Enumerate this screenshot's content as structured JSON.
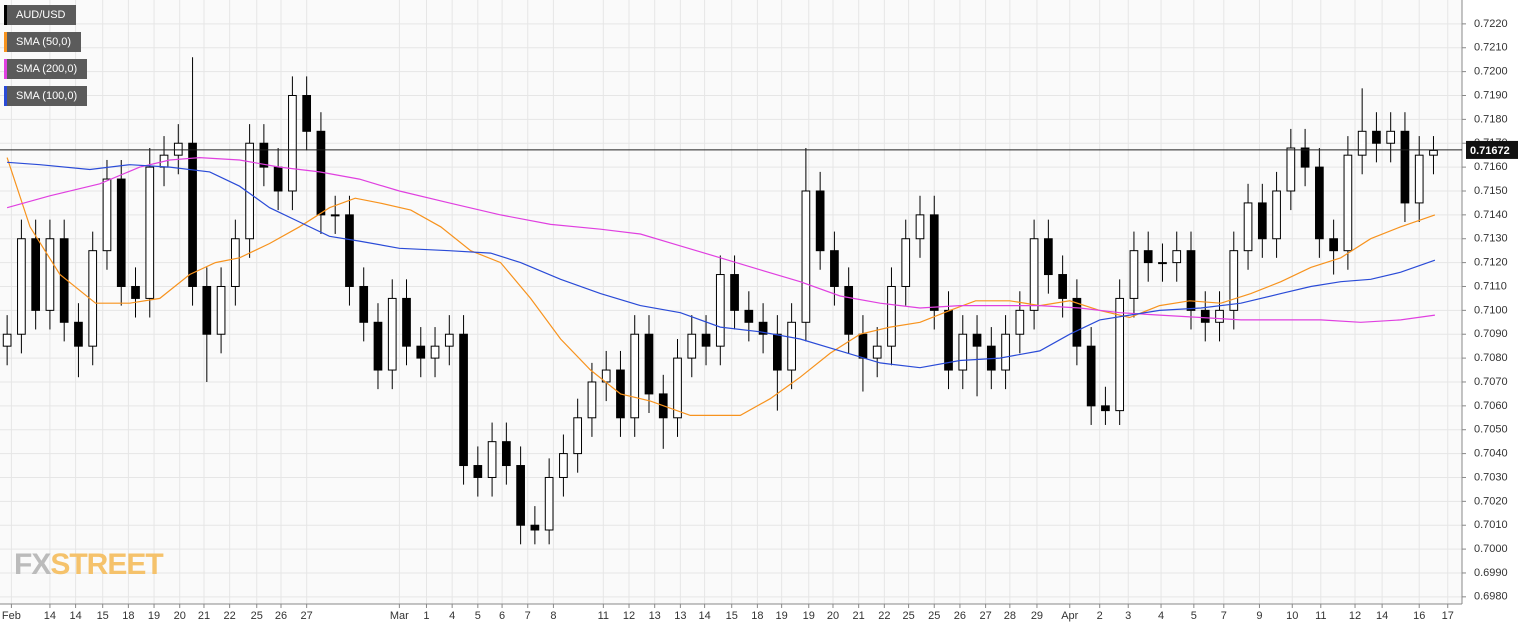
{
  "chart_data": {
    "type": "candlestick",
    "name": "AUD/USD",
    "color": "#000000",
    "open": [
      0.7085,
      0.709,
      0.713,
      0.71,
      0.713,
      0.7095,
      0.7085,
      0.7125,
      0.7155,
      0.711,
      0.7105,
      0.716,
      0.7165,
      0.717,
      0.711,
      0.709,
      0.711,
      0.713,
      0.717,
      0.716,
      0.715,
      0.719,
      0.7175,
      0.714,
      0.714,
      0.711,
      0.7095,
      0.7075,
      0.7105,
      0.7085,
      0.708,
      0.7085,
      0.709,
      0.7035,
      0.703,
      0.7045,
      0.7035,
      0.701,
      0.7008,
      0.703,
      0.704,
      0.7055,
      0.707,
      0.7075,
      0.7055,
      0.709,
      0.7065,
      0.7055,
      0.708,
      0.709,
      0.7085,
      0.7115,
      0.71,
      0.7095,
      0.709,
      0.7075,
      0.7095,
      0.715,
      0.7125,
      0.711,
      0.709,
      0.708,
      0.7085,
      0.711,
      0.713,
      0.714,
      0.71,
      0.7075,
      0.709,
      0.7085,
      0.7075,
      0.709,
      0.71,
      0.713,
      0.7115,
      0.7105,
      0.7085,
      0.706,
      0.7058,
      0.7105,
      0.7125,
      0.712,
      0.712,
      0.7125,
      0.71,
      0.7095,
      0.71,
      0.7125,
      0.7145,
      0.713,
      0.715,
      0.7168,
      0.716,
      0.713,
      0.7125,
      0.7165,
      0.7175,
      0.717,
      0.7175,
      0.7145,
      0.7165
    ],
    "high": [
      0.7098,
      0.7138,
      0.7138,
      0.7138,
      0.7138,
      0.7103,
      0.7133,
      0.7163,
      0.7163,
      0.7118,
      0.7168,
      0.7173,
      0.7178,
      0.7206,
      0.7118,
      0.7118,
      0.7138,
      0.7178,
      0.7178,
      0.7168,
      0.7198,
      0.7198,
      0.7183,
      0.7148,
      0.7148,
      0.7118,
      0.7103,
      0.7113,
      0.7113,
      0.7093,
      0.7093,
      0.7098,
      0.7098,
      0.7043,
      0.7053,
      0.7053,
      0.7043,
      0.7018,
      0.7038,
      0.7048,
      0.7063,
      0.7078,
      0.7083,
      0.7083,
      0.7098,
      0.7098,
      0.7073,
      0.7088,
      0.7098,
      0.7098,
      0.7123,
      0.7123,
      0.7108,
      0.7103,
      0.7098,
      0.7103,
      0.7168,
      0.7158,
      0.7133,
      0.7118,
      0.7098,
      0.7093,
      0.7118,
      0.7138,
      0.7148,
      0.7148,
      0.7108,
      0.7098,
      0.7098,
      0.7093,
      0.7098,
      0.7108,
      0.7138,
      0.7138,
      0.7123,
      0.7113,
      0.7093,
      0.7068,
      0.7113,
      0.7133,
      0.7133,
      0.7128,
      0.7133,
      0.7133,
      0.7108,
      0.7108,
      0.7133,
      0.7153,
      0.7153,
      0.7158,
      0.7176,
      0.7176,
      0.7168,
      0.7138,
      0.7173,
      0.7193,
      0.7183,
      0.7183,
      0.7183,
      0.7173,
      0.7173
    ],
    "low": [
      0.7077,
      0.7082,
      0.7092,
      0.7092,
      0.7087,
      0.7072,
      0.7077,
      0.7117,
      0.7102,
      0.7097,
      0.7097,
      0.7152,
      0.7157,
      0.7102,
      0.707,
      0.7082,
      0.7102,
      0.7122,
      0.7152,
      0.7142,
      0.7142,
      0.7167,
      0.7132,
      0.7132,
      0.7102,
      0.7087,
      0.7067,
      0.7067,
      0.7077,
      0.7072,
      0.7072,
      0.7077,
      0.7027,
      0.7022,
      0.7022,
      0.7027,
      0.7002,
      0.7002,
      0.7002,
      0.7022,
      0.7032,
      0.7047,
      0.7062,
      0.7047,
      0.7047,
      0.7057,
      0.7042,
      0.7047,
      0.7072,
      0.7077,
      0.7077,
      0.7092,
      0.7087,
      0.7082,
      0.7058,
      0.7067,
      0.7087,
      0.7117,
      0.7102,
      0.7082,
      0.7066,
      0.7072,
      0.7077,
      0.7102,
      0.7122,
      0.7092,
      0.7067,
      0.7067,
      0.7064,
      0.7067,
      0.7067,
      0.7082,
      0.7092,
      0.7107,
      0.7097,
      0.7077,
      0.7052,
      0.7052,
      0.7052,
      0.7097,
      0.7112,
      0.7112,
      0.7112,
      0.7092,
      0.7087,
      0.7087,
      0.7092,
      0.7117,
      0.7122,
      0.7122,
      0.7142,
      0.7152,
      0.7122,
      0.7115,
      0.7117,
      0.7157,
      0.7162,
      0.7162,
      0.7137,
      0.7137,
      0.7157
    ],
    "close": [
      0.709,
      0.713,
      0.71,
      0.713,
      0.7095,
      0.7085,
      0.7125,
      0.7155,
      0.711,
      0.7105,
      0.716,
      0.7165,
      0.717,
      0.711,
      0.709,
      0.711,
      0.713,
      0.717,
      0.716,
      0.715,
      0.719,
      0.7175,
      0.714,
      0.714,
      0.711,
      0.7095,
      0.7075,
      0.7105,
      0.7085,
      0.708,
      0.7085,
      0.709,
      0.7035,
      0.703,
      0.7045,
      0.7035,
      0.701,
      0.7008,
      0.703,
      0.704,
      0.7055,
      0.707,
      0.7075,
      0.7055,
      0.709,
      0.7065,
      0.7055,
      0.708,
      0.709,
      0.7085,
      0.7115,
      0.71,
      0.7095,
      0.709,
      0.7075,
      0.7095,
      0.715,
      0.7125,
      0.711,
      0.709,
      0.708,
      0.7085,
      0.711,
      0.713,
      0.714,
      0.71,
      0.7075,
      0.709,
      0.7085,
      0.7075,
      0.709,
      0.71,
      0.713,
      0.7115,
      0.7105,
      0.7085,
      0.706,
      0.7058,
      0.7105,
      0.7125,
      0.712,
      0.712,
      0.7125,
      0.71,
      0.7095,
      0.71,
      0.7125,
      0.7145,
      0.713,
      0.715,
      0.7168,
      0.716,
      0.713,
      0.7125,
      0.7165,
      0.7175,
      0.717,
      0.7175,
      0.7145,
      0.7165,
      0.7167
    ],
    "overlays": [
      {
        "name": "SMA (50,0)",
        "color": "#f7931e",
        "x": [
          0,
          1.6,
          3.7,
          6.2,
          8.6,
          10.7,
          12.8,
          14.6,
          16.3,
          18.4,
          20.5,
          22.6,
          24.4,
          26.1,
          28.3,
          30.4,
          32.5,
          34.6,
          36.7,
          38.8,
          40.9,
          43,
          45.1,
          47.9,
          51.4,
          53.5,
          55.6,
          57.7,
          59.8,
          61.9,
          64,
          66.1,
          67.9,
          70.3,
          72.4,
          74.5,
          76.6,
          78.7,
          80.8,
          82.9,
          85.1,
          87.2,
          89.3,
          91.4,
          93.5,
          95.6,
          97.7,
          100.1
        ],
        "values": [
          0.7164,
          0.7135,
          0.7115,
          0.7103,
          0.7103,
          0.7105,
          0.7115,
          0.712,
          0.7122,
          0.7128,
          0.7135,
          0.7143,
          0.7147,
          0.7145,
          0.7142,
          0.7135,
          0.7125,
          0.712,
          0.7105,
          0.7088,
          0.7075,
          0.7065,
          0.7062,
          0.7056,
          0.7056,
          0.7063,
          0.7072,
          0.7082,
          0.709,
          0.7093,
          0.7095,
          0.71,
          0.7104,
          0.7104,
          0.7102,
          0.7104,
          0.71,
          0.7097,
          0.7102,
          0.7104,
          0.7103,
          0.7107,
          0.7112,
          0.7118,
          0.7122,
          0.713,
          0.7135,
          0.714
        ]
      },
      {
        "name": "SMA (200,0)",
        "color": "#e040e0",
        "x": [
          0,
          3,
          6.5,
          9.3,
          11.4,
          13.5,
          16.3,
          19.1,
          21.9,
          24.7,
          27.5,
          31,
          34.6,
          38.1,
          41.6,
          44.4,
          47.2,
          50,
          52.8,
          55.6,
          58.4,
          61.2,
          64,
          66.8,
          69.6,
          72.4,
          75.2,
          78,
          80.8,
          83.7,
          86.5,
          89.3,
          92.1,
          94.9,
          97.7,
          100.1
        ],
        "values": [
          0.7143,
          0.7148,
          0.7153,
          0.716,
          0.7163,
          0.7164,
          0.7163,
          0.716,
          0.7158,
          0.7155,
          0.715,
          0.7145,
          0.714,
          0.7136,
          0.7134,
          0.7132,
          0.7127,
          0.7122,
          0.7117,
          0.7112,
          0.7106,
          0.7103,
          0.7101,
          0.7102,
          0.7102,
          0.7102,
          0.7101,
          0.7099,
          0.7098,
          0.7097,
          0.7096,
          0.7096,
          0.7096,
          0.7095,
          0.7096,
          0.7098
        ]
      },
      {
        "name": "SMA (100,0)",
        "color": "#2a4bd7",
        "x": [
          0,
          2.3,
          5.8,
          8.6,
          11.4,
          14.2,
          16.3,
          18.4,
          20.5,
          22.6,
          24.7,
          27.5,
          31,
          33.9,
          36,
          38.8,
          41.6,
          44.4,
          47.2,
          50,
          52.8,
          55.6,
          58.4,
          61.2,
          64,
          66.8,
          69.6,
          72.4,
          74.5,
          76.6,
          78.7,
          80.8,
          83.7,
          86.5,
          89.3,
          91.4,
          93.5,
          95.6,
          97.7,
          100.1
        ],
        "values": [
          0.7162,
          0.7161,
          0.7159,
          0.7161,
          0.716,
          0.7158,
          0.7152,
          0.7143,
          0.7137,
          0.7131,
          0.7129,
          0.7126,
          0.7125,
          0.7124,
          0.712,
          0.7113,
          0.7107,
          0.7102,
          0.7099,
          0.7093,
          0.7091,
          0.7088,
          0.7083,
          0.7078,
          0.7076,
          0.7079,
          0.708,
          0.7083,
          0.709,
          0.7096,
          0.7098,
          0.71,
          0.7101,
          0.7103,
          0.7107,
          0.711,
          0.7112,
          0.7113,
          0.7116,
          0.7121
        ]
      }
    ],
    "xlim": [
      -0.5,
      102
    ],
    "ylim": [
      0.6977,
      0.723
    ],
    "xticks": [
      {
        "value": 0.3,
        "label": "Feb"
      },
      {
        "value": 3,
        "label": "14"
      },
      {
        "value": 4.8,
        "label": "14"
      },
      {
        "value": 6.7,
        "label": "15"
      },
      {
        "value": 8.5,
        "label": "18"
      },
      {
        "value": 10.3,
        "label": "19"
      },
      {
        "value": 12.1,
        "label": "20"
      },
      {
        "value": 13.8,
        "label": "21"
      },
      {
        "value": 15.6,
        "label": "22"
      },
      {
        "value": 17.5,
        "label": "25"
      },
      {
        "value": 19.2,
        "label": "26"
      },
      {
        "value": 21,
        "label": "27"
      },
      {
        "value": 27.5,
        "label": "Mar"
      },
      {
        "value": 29.4,
        "label": "1"
      },
      {
        "value": 31.2,
        "label": "4"
      },
      {
        "value": 33,
        "label": "5"
      },
      {
        "value": 34.7,
        "label": "6"
      },
      {
        "value": 36.5,
        "label": "7"
      },
      {
        "value": 38.3,
        "label": "8"
      },
      {
        "value": 41.8,
        "label": "11"
      },
      {
        "value": 43.6,
        "label": "12"
      },
      {
        "value": 45.4,
        "label": "13"
      },
      {
        "value": 47.2,
        "label": "13"
      },
      {
        "value": 48.9,
        "label": "14"
      },
      {
        "value": 50.8,
        "label": "15"
      },
      {
        "value": 52.6,
        "label": "18"
      },
      {
        "value": 54.3,
        "label": "19"
      },
      {
        "value": 56.2,
        "label": "19"
      },
      {
        "value": 57.9,
        "label": "20"
      },
      {
        "value": 59.7,
        "label": "21"
      },
      {
        "value": 61.5,
        "label": "22"
      },
      {
        "value": 63.2,
        "label": "25"
      },
      {
        "value": 65,
        "label": "25"
      },
      {
        "value": 66.8,
        "label": "26"
      },
      {
        "value": 68.6,
        "label": "27"
      },
      {
        "value": 70.3,
        "label": "28"
      },
      {
        "value": 72.2,
        "label": "29"
      },
      {
        "value": 74.5,
        "label": "Apr"
      },
      {
        "value": 76.6,
        "label": "2"
      },
      {
        "value": 78.6,
        "label": "3"
      },
      {
        "value": 80.9,
        "label": "4"
      },
      {
        "value": 83.2,
        "label": "5"
      },
      {
        "value": 85.3,
        "label": "7"
      },
      {
        "value": 87.8,
        "label": "9"
      },
      {
        "value": 90.1,
        "label": "10"
      },
      {
        "value": 92.1,
        "label": "11"
      },
      {
        "value": 94.5,
        "label": "12"
      },
      {
        "value": 96.4,
        "label": "14"
      },
      {
        "value": 99,
        "label": "16"
      },
      {
        "value": 101,
        "label": "17"
      }
    ],
    "yticks": [
      {
        "value": 0.698,
        "label": "0.6980"
      },
      {
        "value": 0.699,
        "label": "0.6990"
      },
      {
        "value": 0.7,
        "label": "0.7000"
      },
      {
        "value": 0.701,
        "label": "0.7010"
      },
      {
        "value": 0.702,
        "label": "0.7020"
      },
      {
        "value": 0.703,
        "label": "0.7030"
      },
      {
        "value": 0.704,
        "label": "0.7040"
      },
      {
        "value": 0.705,
        "label": "0.7050"
      },
      {
        "value": 0.706,
        "label": "0.7060"
      },
      {
        "value": 0.707,
        "label": "0.7070"
      },
      {
        "value": 0.708,
        "label": "0.7080"
      },
      {
        "value": 0.709,
        "label": "0.7090"
      },
      {
        "value": 0.71,
        "label": "0.7100"
      },
      {
        "value": 0.711,
        "label": "0.7110"
      },
      {
        "value": 0.712,
        "label": "0.7120"
      },
      {
        "value": 0.713,
        "label": "0.7130"
      },
      {
        "value": 0.714,
        "label": "0.7140"
      },
      {
        "value": 0.715,
        "label": "0.7150"
      },
      {
        "value": 0.716,
        "label": "0.7160"
      },
      {
        "value": 0.717,
        "label": "0.7170"
      },
      {
        "value": 0.718,
        "label": "0.7180"
      },
      {
        "value": 0.719,
        "label": "0.7190"
      },
      {
        "value": 0.72,
        "label": "0.7200"
      },
      {
        "value": 0.721,
        "label": "0.7210"
      },
      {
        "value": 0.722,
        "label": "0.7220"
      }
    ],
    "grid": true,
    "last_price": 0.71672,
    "watermark": {
      "prefix": "FX",
      "suffix": "STREET"
    }
  }
}
